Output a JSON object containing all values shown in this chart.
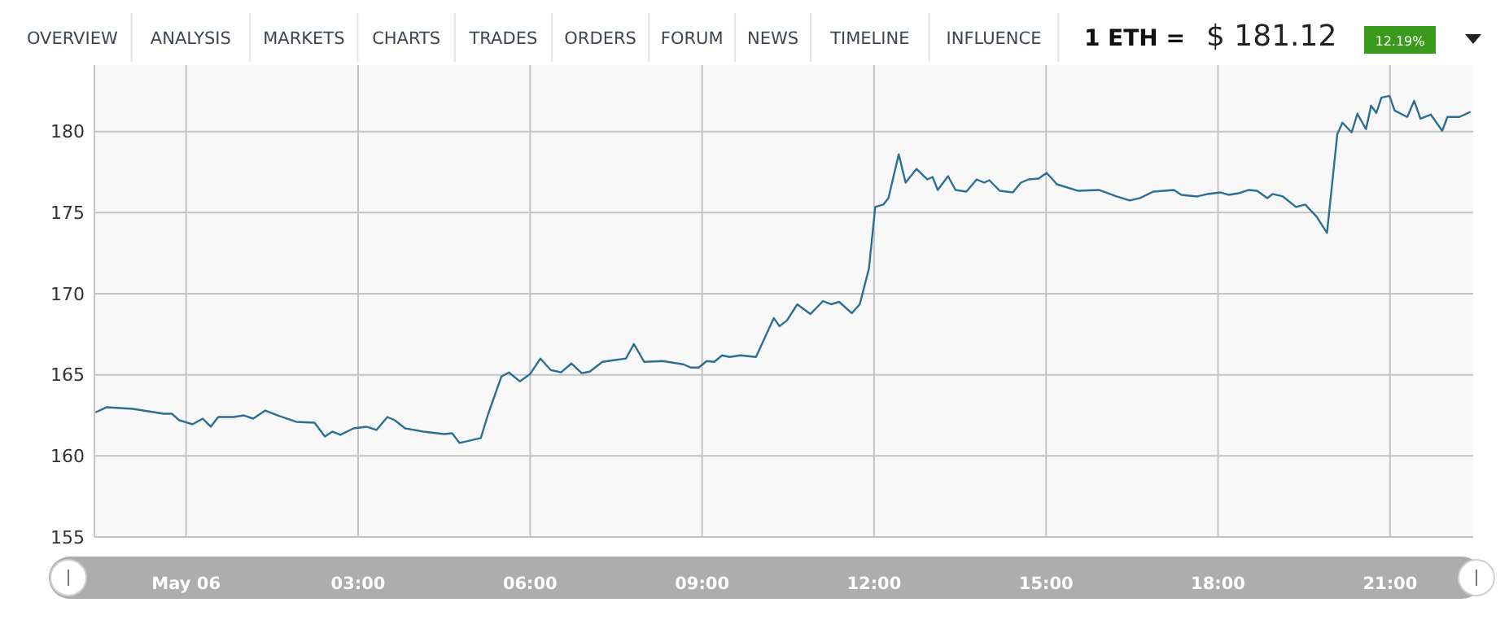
{
  "chart_data": {
    "type": "line",
    "annotations": [
      "OVERVIEW",
      "ANALYSIS",
      "MARKETS",
      "CHARTS",
      "TRADES",
      "ORDERS",
      "FORUM",
      "NEWS",
      "TIMELINE",
      "INFLUENCE",
      "1 ETH =",
      "$ 181.12",
      "12.19%"
    ],
    "xlim": [
      -1.6,
      22.45
    ],
    "ylim": [
      155,
      184.1
    ],
    "xticks": [
      {
        "value": 0,
        "label": "May 06"
      },
      {
        "value": 3,
        "label": "03:00"
      },
      {
        "value": 6,
        "label": "06:00"
      },
      {
        "value": 9,
        "label": "09:00"
      },
      {
        "value": 12,
        "label": "12:00"
      },
      {
        "value": 15,
        "label": "15:00"
      },
      {
        "value": 18,
        "label": "18:00"
      },
      {
        "value": 21,
        "label": "21:00"
      }
    ],
    "yticks": [
      155,
      160,
      165,
      170,
      175,
      180
    ],
    "grid": true,
    "marker": "none",
    "line_style": "solid",
    "series": [
      {
        "color": "#2b6f95",
        "x": [
          -1.57,
          -1.39,
          -0.93,
          -0.39,
          -0.25,
          -0.12,
          0.11,
          0.29,
          0.43,
          0.56,
          0.83,
          1.01,
          1.17,
          1.38,
          1.6,
          1.92,
          2.24,
          2.42,
          2.55,
          2.69,
          2.92,
          3.14,
          3.32,
          3.51,
          3.64,
          3.82,
          4.14,
          4.5,
          4.64,
          4.77,
          5.14,
          5.27,
          5.5,
          5.63,
          5.82,
          6.0,
          6.18,
          6.36,
          6.54,
          6.72,
          6.9,
          7.04,
          7.26,
          7.45,
          7.67,
          7.81,
          7.99,
          8.31,
          8.67,
          8.8,
          8.94,
          9.08,
          9.21,
          9.35,
          9.48,
          9.67,
          9.94,
          10.25,
          10.35,
          10.48,
          10.66,
          10.89,
          11.11,
          11.25,
          11.39,
          11.61,
          11.75,
          11.91,
          12.02,
          12.16,
          12.25,
          12.43,
          12.55,
          12.74,
          12.93,
          13.02,
          13.11,
          13.29,
          13.42,
          13.61,
          13.79,
          13.92,
          14.01,
          14.19,
          14.42,
          14.56,
          14.69,
          14.87,
          15.01,
          15.19,
          15.55,
          15.92,
          16.23,
          16.46,
          16.64,
          16.87,
          17.23,
          17.36,
          17.64,
          17.82,
          18.04,
          18.18,
          18.36,
          18.54,
          18.68,
          18.86,
          18.95,
          19.13,
          19.36,
          19.52,
          19.72,
          19.9,
          20.08,
          20.17,
          20.33,
          20.43,
          20.58,
          20.67,
          20.76,
          20.85,
          20.99,
          21.08,
          21.3,
          21.42,
          21.53,
          21.71,
          21.91,
          22.0,
          22.21,
          22.39
        ],
        "values": [
          162.7,
          163.0,
          162.9,
          162.6,
          162.6,
          162.2,
          161.95,
          162.3,
          161.8,
          162.4,
          162.4,
          162.5,
          162.3,
          162.8,
          162.5,
          162.1,
          162.05,
          161.2,
          161.5,
          161.3,
          161.7,
          161.8,
          161.6,
          162.4,
          162.2,
          161.7,
          161.5,
          161.35,
          161.4,
          160.8,
          161.1,
          162.6,
          164.9,
          165.15,
          164.6,
          165.05,
          166.0,
          165.3,
          165.15,
          165.7,
          165.1,
          165.2,
          165.8,
          165.9,
          166.0,
          166.9,
          165.8,
          165.85,
          165.65,
          165.45,
          165.45,
          165.85,
          165.8,
          166.2,
          166.1,
          166.2,
          166.1,
          168.5,
          168.0,
          168.35,
          169.35,
          168.75,
          169.55,
          169.35,
          169.5,
          168.8,
          169.35,
          171.55,
          175.35,
          175.5,
          175.9,
          178.6,
          176.85,
          177.7,
          177.05,
          177.2,
          176.4,
          177.25,
          176.4,
          176.3,
          177.05,
          176.85,
          177.0,
          176.35,
          176.25,
          176.85,
          177.05,
          177.1,
          177.45,
          176.75,
          176.35,
          176.4,
          176.0,
          175.75,
          175.9,
          176.3,
          176.4,
          176.1,
          176.0,
          176.15,
          176.25,
          176.1,
          176.2,
          176.4,
          176.35,
          175.9,
          176.15,
          176.0,
          175.35,
          175.5,
          174.75,
          173.75,
          179.85,
          180.55,
          179.95,
          181.1,
          180.15,
          181.6,
          181.15,
          182.1,
          182.2,
          181.3,
          180.9,
          181.9,
          180.8,
          181.05,
          180.05,
          180.9,
          180.9,
          181.2
        ]
      }
    ]
  }
}
